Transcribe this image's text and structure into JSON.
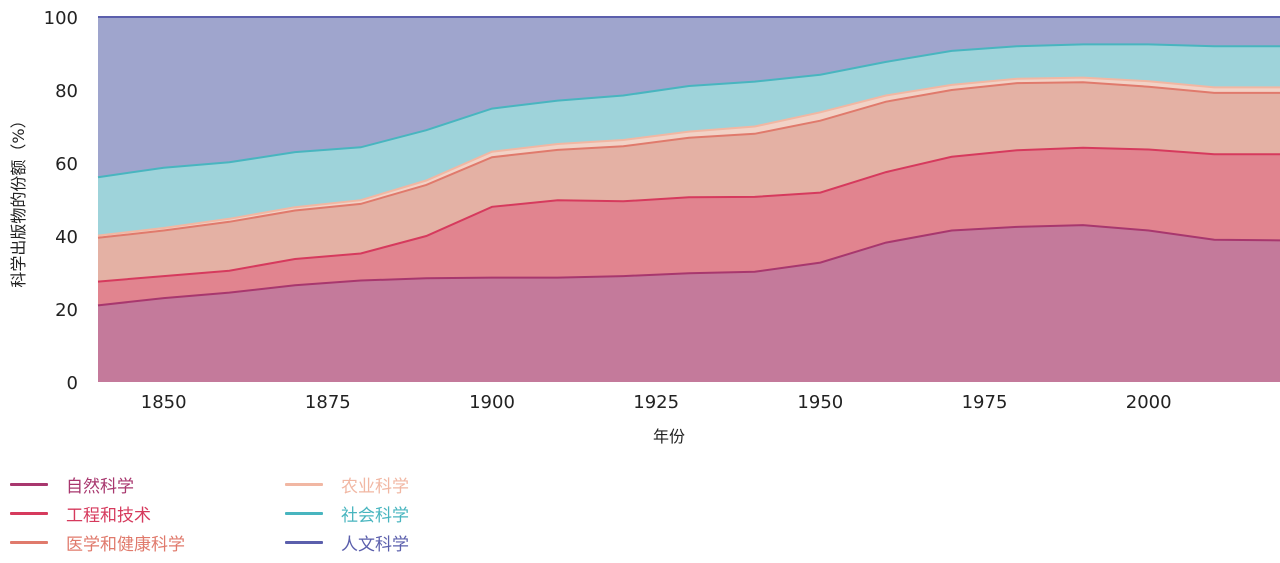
{
  "chart_data": {
    "type": "area",
    "stacked": true,
    "xlabel": "年份",
    "ylabel": "科学出版物的份额（%）",
    "xlim": [
      1840,
      2020
    ],
    "ylim": [
      0,
      100
    ],
    "xticks": [
      1850,
      1875,
      1900,
      1925,
      1950,
      1975,
      2000
    ],
    "yticks": [
      0,
      20,
      40,
      60,
      80,
      100
    ],
    "grid": false,
    "legend_position": "bottom-left",
    "x": [
      1840,
      1850,
      1860,
      1870,
      1880,
      1890,
      1900,
      1910,
      1920,
      1930,
      1940,
      1950,
      1960,
      1970,
      1980,
      1990,
      2000,
      2010,
      2020
    ],
    "series": [
      {
        "name": "自然科学",
        "color": "#a8376e",
        "fill": "#c47a9b",
        "values": [
          21,
          23,
          24.5,
          26.5,
          27.8,
          28.4,
          28.6,
          28.6,
          29,
          29.8,
          30.2,
          32.7,
          38.2,
          41.5,
          42.5,
          43,
          41.5,
          39,
          38.8
        ]
      },
      {
        "name": "工程和技术",
        "color": "#d63a5d",
        "fill": "#e1848f",
        "values": [
          6.5,
          6,
          6,
          7.2,
          7.4,
          11.6,
          19.4,
          21.2,
          20.5,
          20.8,
          20.5,
          19.2,
          19.3,
          20.2,
          21,
          21.2,
          22.2,
          23.4,
          23.6
        ]
      },
      {
        "name": "医学和健康科学",
        "color": "#e07a6c",
        "fill": "#e4b1a4",
        "values": [
          12,
          12.5,
          13.4,
          13.3,
          13.6,
          14,
          13.6,
          13.8,
          15.1,
          16.3,
          17.3,
          19.7,
          19.3,
          18.3,
          18.4,
          17.9,
          17.2,
          16.8,
          16.8
        ]
      },
      {
        "name": "农业科学",
        "color": "#f1b7a3",
        "fill": "#f2d2c6",
        "values": [
          0.6,
          0.7,
          0.8,
          0.9,
          1.0,
          1.2,
          1.5,
          1.6,
          1.7,
          1.7,
          2.0,
          2.3,
          1.7,
          1.4,
          1.2,
          1.3,
          1.5,
          1.5,
          1.5
        ]
      },
      {
        "name": "社会科学",
        "color": "#48b5bf",
        "fill": "#9ed3da",
        "values": [
          16,
          16.5,
          15.5,
          15.1,
          14.5,
          13.8,
          11.8,
          11.9,
          12.2,
          12.5,
          12.3,
          10.3,
          9.2,
          9.3,
          8.9,
          9.1,
          10.1,
          11.3,
          11.3
        ]
      },
      {
        "name": "人文科学",
        "color": "#5b5fac",
        "fill": "#9fa5cd",
        "values": [
          43.9,
          41.3,
          39.8,
          37,
          35.7,
          31,
          25.1,
          22.9,
          21.5,
          18.9,
          17.7,
          15.8,
          12.3,
          9.3,
          8,
          7.5,
          7.5,
          8,
          8
        ]
      }
    ]
  }
}
